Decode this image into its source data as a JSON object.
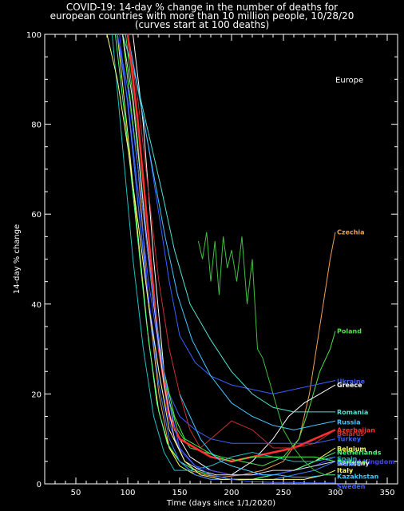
{
  "chart_data": {
    "type": "line",
    "title_lines": [
      "COVID-19: 14-day % change in the number of deaths for",
      "european countries with more than 10 million people, 10/28/20",
      "(curves start at 100 deaths)"
    ],
    "xlabel": "Time (days since 1/1/2020)",
    "ylabel": "14-day % change",
    "annotation": "Europe",
    "xlim": [
      20,
      360
    ],
    "ylim": [
      0,
      100
    ],
    "xticks": [
      50,
      100,
      150,
      200,
      250,
      300,
      350
    ],
    "yticks": [
      0,
      20,
      40,
      60,
      80,
      100
    ],
    "grid": false,
    "series": [
      {
        "name": "Czechia",
        "color": "#f0a050",
        "x": [
          95,
          110,
          120,
          130,
          140,
          150,
          160,
          175,
          190,
          210,
          230,
          250,
          265,
          275,
          285,
          295,
          300
        ],
        "y": [
          100,
          70,
          40,
          20,
          8,
          5,
          3,
          2,
          1.5,
          2,
          3,
          5,
          10,
          20,
          35,
          50,
          56
        ]
      },
      {
        "name": "Poland",
        "color": "#50e050",
        "x": [
          98,
          108,
          118,
          128,
          138,
          148,
          160,
          175,
          190,
          210,
          230,
          250,
          265,
          275,
          285,
          295,
          300
        ],
        "y": [
          100,
          80,
          55,
          35,
          20,
          12,
          8,
          7,
          6,
          5,
          4,
          6,
          10,
          17,
          25,
          30,
          34
        ]
      },
      {
        "name": "Ukraine",
        "color": "#3a60ff",
        "x": [
          100,
          110,
          120,
          130,
          140,
          150,
          165,
          180,
          200,
          220,
          240,
          260,
          280,
          300
        ],
        "y": [
          100,
          88,
          75,
          60,
          45,
          33,
          27,
          24,
          22,
          21,
          20,
          21,
          22,
          23
        ]
      },
      {
        "name": "Greece",
        "color": "#ffffff",
        "x": [
          105,
          115,
          125,
          135,
          145,
          160,
          180,
          200,
          220,
          240,
          255,
          270,
          285,
          300
        ],
        "y": [
          100,
          80,
          50,
          25,
          12,
          6,
          3,
          2,
          5,
          10,
          15,
          18,
          20,
          22
        ]
      },
      {
        "name": "Romania",
        "color": "#50e0d0",
        "x": [
          95,
          108,
          120,
          132,
          145,
          160,
          180,
          200,
          220,
          240,
          260,
          280,
          300
        ],
        "y": [
          100,
          90,
          78,
          66,
          52,
          40,
          32,
          25,
          20,
          17,
          16,
          16,
          16
        ]
      },
      {
        "name": "Russia",
        "color": "#40c8ff",
        "x": [
          100,
          112,
          124,
          136,
          148,
          162,
          180,
          200,
          220,
          240,
          260,
          280,
          300
        ],
        "y": [
          100,
          85,
          70,
          55,
          42,
          32,
          24,
          18,
          15,
          13,
          12,
          13,
          14
        ]
      },
      {
        "name": "Azerbaijan",
        "color": "#ff3030",
        "x": [
          100,
          110,
          120,
          130,
          140,
          150,
          165,
          180,
          200,
          220,
          240,
          260,
          280,
          300
        ],
        "y": [
          100,
          80,
          55,
          30,
          15,
          10,
          8,
          6,
          5,
          6,
          7,
          8,
          10,
          12
        ]
      },
      {
        "name": "Belarus",
        "color": "#c83030",
        "x": [
          100,
          110,
          120,
          130,
          140,
          150,
          160,
          170,
          180,
          200,
          220,
          240,
          260,
          280,
          300
        ],
        "y": [
          100,
          85,
          65,
          45,
          30,
          20,
          12,
          8,
          10,
          14,
          12,
          8,
          8,
          9,
          12
        ]
      },
      {
        "name": "Turkey",
        "color": "#3a60ff",
        "x": [
          90,
          100,
          110,
          120,
          130,
          140,
          150,
          165,
          180,
          200,
          220,
          240,
          260,
          280,
          300
        ],
        "y": [
          100,
          85,
          65,
          45,
          30,
          20,
          15,
          12,
          10,
          9,
          9,
          9,
          9,
          9,
          10
        ]
      },
      {
        "name": "Belgium",
        "color": "#ffff50",
        "x": [
          90,
          100,
          110,
          120,
          130,
          140,
          150,
          165,
          180,
          200,
          220,
          240,
          260,
          280,
          300
        ],
        "y": [
          100,
          78,
          55,
          32,
          16,
          8,
          4,
          2,
          1,
          1,
          1,
          2,
          3,
          5,
          8
        ]
      },
      {
        "name": "Netherlands",
        "color": "#40ff80",
        "x": [
          88,
          98,
          108,
          118,
          128,
          138,
          150,
          165,
          180,
          200,
          220,
          240,
          260,
          280,
          300
        ],
        "y": [
          100,
          80,
          58,
          36,
          18,
          9,
          5,
          3,
          2,
          1,
          1,
          2,
          3,
          5,
          7
        ]
      },
      {
        "name": "Spain",
        "color": "#20c0c0",
        "x": [
          85,
          95,
          105,
          115,
          125,
          135,
          145,
          160,
          180,
          200,
          220,
          240,
          260,
          280,
          300
        ],
        "y": [
          100,
          75,
          50,
          30,
          15,
          7,
          3,
          3,
          4,
          6,
          7,
          6,
          5,
          5,
          6
        ]
      },
      {
        "name": "United Kingdom",
        "color": "#4040ff",
        "x": [
          92,
          102,
          112,
          122,
          132,
          142,
          152,
          165,
          180,
          200,
          220,
          240,
          260,
          280,
          300
        ],
        "y": [
          100,
          80,
          58,
          38,
          22,
          12,
          7,
          4,
          3,
          2,
          2,
          2,
          3,
          4,
          6
        ]
      },
      {
        "name": "Portugal",
        "color": "#40ff40",
        "x": [
          95,
          105,
          115,
          125,
          135,
          145,
          155,
          170,
          185,
          200,
          220,
          240,
          260,
          280,
          300
        ],
        "y": [
          100,
          80,
          60,
          40,
          25,
          15,
          10,
          8,
          6,
          5,
          6,
          6,
          6,
          6,
          5
        ]
      },
      {
        "name": "Germany",
        "color": "#e0e0e0",
        "x": [
          95,
          105,
          115,
          125,
          135,
          145,
          155,
          170,
          185,
          200,
          220,
          240,
          260,
          280,
          300
        ],
        "y": [
          100,
          85,
          62,
          40,
          22,
          10,
          5,
          3,
          2,
          2,
          2,
          3,
          3,
          4,
          5
        ]
      },
      {
        "name": "France",
        "color": "#4080ff",
        "x": [
          90,
          100,
          110,
          120,
          130,
          140,
          150,
          165,
          180,
          200,
          220,
          240,
          260,
          280,
          300
        ],
        "y": [
          100,
          85,
          62,
          40,
          22,
          10,
          5,
          2,
          1,
          1,
          1,
          1,
          2,
          3,
          5
        ]
      },
      {
        "name": "Italy",
        "color": "#ffff80",
        "x": [
          80,
          90,
          100,
          110,
          120,
          130,
          140,
          155,
          170,
          190,
          210,
          230,
          250,
          270,
          290,
          300
        ],
        "y": [
          100,
          90,
          75,
          58,
          40,
          25,
          12,
          5,
          2,
          1,
          1,
          1,
          1,
          1,
          2,
          3
        ]
      },
      {
        "name": "Kazakhstan",
        "color": "#40c8ff",
        "x": [
          150,
          160,
          170,
          180,
          190,
          200,
          215,
          230,
          245,
          260,
          275,
          290,
          300
        ],
        "y": [
          20,
          15,
          10,
          7,
          5,
          4,
          3,
          2,
          2,
          1.5,
          1.5,
          2,
          2
        ]
      },
      {
        "name": "Sweden",
        "color": "#4060ff",
        "x": [
          90,
          100,
          110,
          120,
          130,
          140,
          150,
          165,
          180,
          200,
          220,
          240,
          260,
          280,
          300
        ],
        "y": [
          100,
          88,
          70,
          50,
          32,
          18,
          8,
          4,
          2,
          1,
          0.5,
          0.3,
          0.3,
          0.2,
          0.2
        ]
      },
      {
        "name": "",
        "color": "#40c040",
        "x": [
          168,
          172,
          176,
          180,
          184,
          188,
          192,
          196,
          200,
          205,
          210,
          215,
          220,
          225,
          230,
          240,
          250,
          260,
          270,
          280,
          290,
          300
        ],
        "y": [
          54,
          50,
          56,
          45,
          54,
          42,
          55,
          48,
          52,
          45,
          55,
          40,
          50,
          30,
          28,
          20,
          12,
          8,
          5,
          3,
          2,
          2
        ]
      }
    ],
    "labels": [
      {
        "text": "Czechia",
        "color": "#f0a050",
        "y": 56
      },
      {
        "text": "Poland",
        "color": "#50e050",
        "y": 34
      },
      {
        "text": "Ukraine",
        "color": "#3a60ff",
        "y": 22.8
      },
      {
        "text": "Greece",
        "color": "#ffffff",
        "y": 22
      },
      {
        "text": "Romania",
        "color": "#50e0d0",
        "y": 16
      },
      {
        "text": "Russia",
        "color": "#40c8ff",
        "y": 13.8
      },
      {
        "text": "Azerbaijan",
        "color": "#ff3030",
        "y": 12
      },
      {
        "text": "Belarus",
        "color": "#c83030",
        "y": 11.2
      },
      {
        "text": "Turkey",
        "color": "#3a60ff",
        "y": 10
      },
      {
        "text": "Belgium",
        "color": "#ffff50",
        "y": 7.8
      },
      {
        "text": "Netherlands",
        "color": "#40ff80",
        "y": 7
      },
      {
        "text": "Spain",
        "color": "#20c0c0",
        "y": 5.6
      },
      {
        "text": "United Kingdom",
        "color": "#4040ff",
        "y": 5
      },
      {
        "text": "Portugal",
        "color": "#40ff40",
        "y": 4.9
      },
      {
        "text": "Germany",
        "color": "#e0e0e0",
        "y": 4.6
      },
      {
        "text": "France",
        "color": "#4080ff",
        "y": 4.4
      },
      {
        "text": "Italy",
        "color": "#ffff80",
        "y": 3
      },
      {
        "text": "Kazakhstan",
        "color": "#40c8ff",
        "y": 1.7
      },
      {
        "text": "Sweden",
        "color": "#4060ff",
        "y": -0.5
      }
    ]
  }
}
